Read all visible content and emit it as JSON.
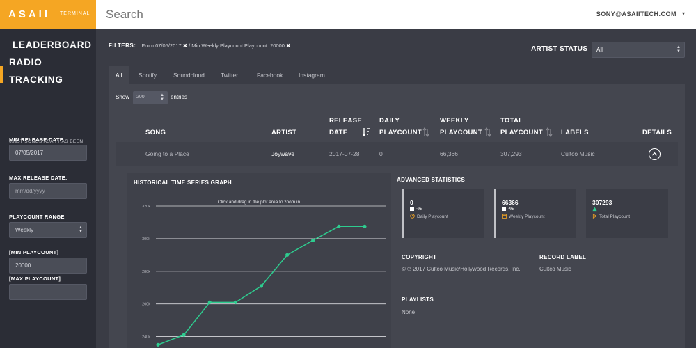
{
  "brand": {
    "logo": "ASAII",
    "sub": "TERMINAL",
    "accent": "#f5a623"
  },
  "search": {
    "placeholder": "Search"
  },
  "user": {
    "email": "SONY@ASAIITECH.COM",
    "caret": "▾"
  },
  "sidebar": {
    "nav": [
      {
        "label": "LEADERBOARD",
        "active": true
      },
      {
        "label": "RADIO",
        "active": false
      },
      {
        "label": "TRACKING",
        "active": false
      }
    ],
    "note": "63957 SONGS ASAII HAS BEEN TRACKING FOR YOU.",
    "min_release_label": "MIN RELEASE DATE:",
    "min_release_value": "07/05/2017",
    "max_release_label": "MAX RELEASE DATE:",
    "max_release_placeholder": "mm/dd/yyyy",
    "playcount_range_label": "PLAYCOUNT RANGE",
    "playcount_range_value": "Weekly",
    "min_playcount_label": "[MIN PLAYCOUNT]",
    "min_playcount_value": "20000",
    "max_playcount_label": "[MAX PLAYCOUNT]",
    "max_playcount_value": ""
  },
  "filters": {
    "label": "FILTERS:",
    "items": [
      "From 07/05/2017",
      "Min Weekly Playcount Playcount: 20000"
    ],
    "separator": "/",
    "remove_glyph": "✖"
  },
  "artist_status": {
    "label": "ARTIST STATUS",
    "value": "All"
  },
  "tabs": [
    "All",
    "Spotify",
    "Soundcloud",
    "Twitter",
    "Facebook",
    "Instagram"
  ],
  "table": {
    "show_label": "Show",
    "entries_value": "200",
    "entries_label": "entries",
    "headers": {
      "song": "SONG",
      "artist": "ARTIST",
      "release_1": "RELEASE",
      "release_2": "DATE",
      "daily_1": "DAILY",
      "daily_2": "PLAYCOUNT",
      "weekly_1": "WEEKLY",
      "weekly_2": "PLAYCOUNT",
      "total_1": "TOTAL",
      "total_2": "PLAYCOUNT",
      "labels": "LABELS",
      "details": "DETAILS"
    },
    "row": {
      "song": "Going to a Place",
      "artist": "Joywave",
      "release": "2017-07-28",
      "daily": "0",
      "weekly": "66,366",
      "total": "307,293",
      "label": "Cultco Music"
    }
  },
  "chart": {
    "title": "HISTORICAL TIME SERIES GRAPH",
    "hint": "Click and drag in the plot area to zoom in",
    "line_color": "#2ecc8f"
  },
  "chart_data": {
    "type": "line",
    "title": "HISTORICAL TIME SERIES GRAPH",
    "xlabel": "",
    "ylabel": "",
    "ylim": [
      233000,
      320000
    ],
    "yticks": [
      "240k",
      "260k",
      "280k",
      "300k",
      "320k"
    ],
    "ytick_values": [
      240000,
      260000,
      280000,
      300000,
      320000
    ],
    "grid": true,
    "legend": "none",
    "series": [
      {
        "values": [
          235000,
          241000,
          261000,
          261000,
          271000,
          290000,
          299000,
          307500,
          307500
        ]
      }
    ]
  },
  "advanced": {
    "title": "ADVANCED STATISTICS",
    "cards": [
      {
        "value": "0",
        "pct": "-%",
        "name": "Daily Playcount",
        "icon": "clock-icon",
        "icon_color": "#f5a623"
      },
      {
        "value": "66366",
        "pct": "-%",
        "name": "Weekly Playcount",
        "icon": "calendar-icon",
        "icon_color": "#f5a623"
      },
      {
        "value": "307293",
        "pct": "",
        "name": "Total Playcount",
        "icon": "triangle-outline-icon",
        "icon_color": "#f5a623",
        "trend": "up",
        "trend_color": "#2ecc8f"
      }
    ],
    "copyright_label": "COPYRIGHT",
    "copyright_text": "© ℗ 2017 Cultco Music/Hollywood Records, Inc.",
    "record_label_label": "RECORD LABEL",
    "record_label_text": "Cultco Music",
    "playlists_label": "PLAYLISTS",
    "playlists_text": "None"
  }
}
